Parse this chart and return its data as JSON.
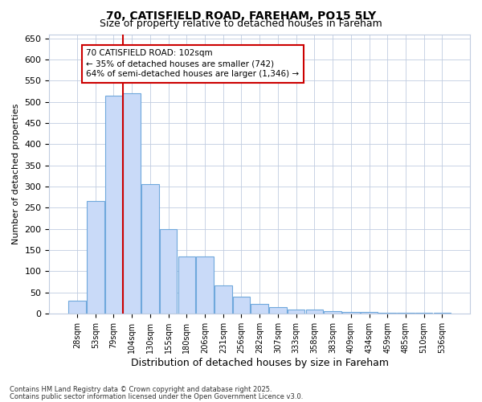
{
  "title1": "70, CATISFIELD ROAD, FAREHAM, PO15 5LY",
  "title2": "Size of property relative to detached houses in Fareham",
  "xlabel": "Distribution of detached houses by size in Fareham",
  "ylabel": "Number of detached properties",
  "categories": [
    "28sqm",
    "53sqm",
    "79sqm",
    "104sqm",
    "130sqm",
    "155sqm",
    "180sqm",
    "206sqm",
    "231sqm",
    "256sqm",
    "282sqm",
    "307sqm",
    "333sqm",
    "358sqm",
    "383sqm",
    "409sqm",
    "434sqm",
    "459sqm",
    "485sqm",
    "510sqm",
    "536sqm"
  ],
  "values": [
    30,
    265,
    515,
    520,
    305,
    200,
    135,
    135,
    67,
    40,
    22,
    14,
    9,
    9,
    5,
    3,
    3,
    2,
    2,
    2,
    2
  ],
  "bar_color": "#c9daf8",
  "bar_edge_color": "#6fa8dc",
  "vline_color": "#cc0000",
  "annotation_text": "70 CATISFIELD ROAD: 102sqm\n← 35% of detached houses are smaller (742)\n64% of semi-detached houses are larger (1,346) →",
  "annotation_box_color": "#ffffff",
  "annotation_box_edge": "#cc0000",
  "ylim": [
    0,
    660
  ],
  "yticks": [
    0,
    50,
    100,
    150,
    200,
    250,
    300,
    350,
    400,
    450,
    500,
    550,
    600,
    650
  ],
  "footer1": "Contains HM Land Registry data © Crown copyright and database right 2025.",
  "footer2": "Contains public sector information licensed under the Open Government Licence v3.0.",
  "bg_color": "#ffffff",
  "plot_bg_color": "#ffffff",
  "grid_color": "#c0cce0"
}
